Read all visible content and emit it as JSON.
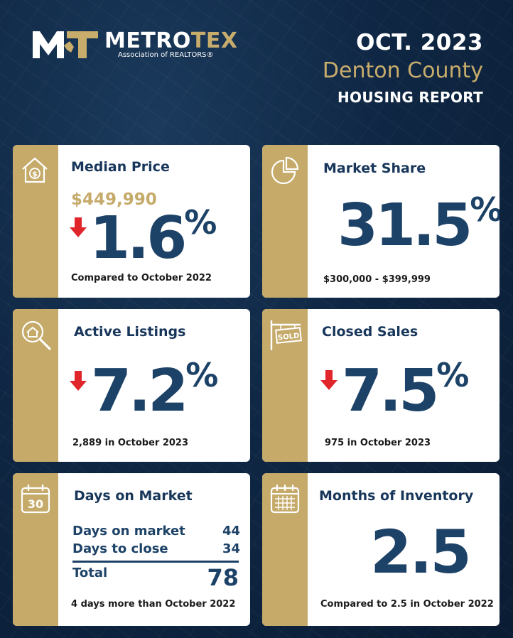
{
  "header": {
    "logo_main": "METRO",
    "logo_accent": "TEX",
    "logo_sub": "Association of REALTORS®",
    "date": "OCT. 2023",
    "county": "Denton County",
    "report": "HOUSING REPORT"
  },
  "cards": {
    "median_price": {
      "title": "Median Price",
      "price": "$449,990",
      "change": "1.6",
      "direction": "down",
      "note": "Compared to October 2022"
    },
    "market_share": {
      "title": "Market Share",
      "value": "31.5",
      "note": "$300,000 - $399,999"
    },
    "active_listings": {
      "title": "Active Listings",
      "change": "7.2",
      "direction": "down",
      "note": "2,889 in October 2023"
    },
    "closed_sales": {
      "title": "Closed Sales",
      "change": "7.5",
      "direction": "down",
      "note": "975 in October 2023",
      "icon_text": "SOLD"
    },
    "days_on_market": {
      "title": "Days on Market",
      "icon_text": "30",
      "rows": [
        {
          "label": "Days on market",
          "value": "44"
        },
        {
          "label": "Days to close",
          "value": "34"
        }
      ],
      "total_label": "Total",
      "total_value": "78",
      "note": "4 days more than October 2022"
    },
    "months_inventory": {
      "title": "Months of Inventory",
      "value": "2.5",
      "note": "Compared to 2.5 in October 2022"
    }
  },
  "percent_symbol": "%",
  "colors": {
    "navy_bg": "#0f2744",
    "gold": "#c5aa6a",
    "number_blue": "#1d4267",
    "arrow_red": "#e0252b"
  }
}
